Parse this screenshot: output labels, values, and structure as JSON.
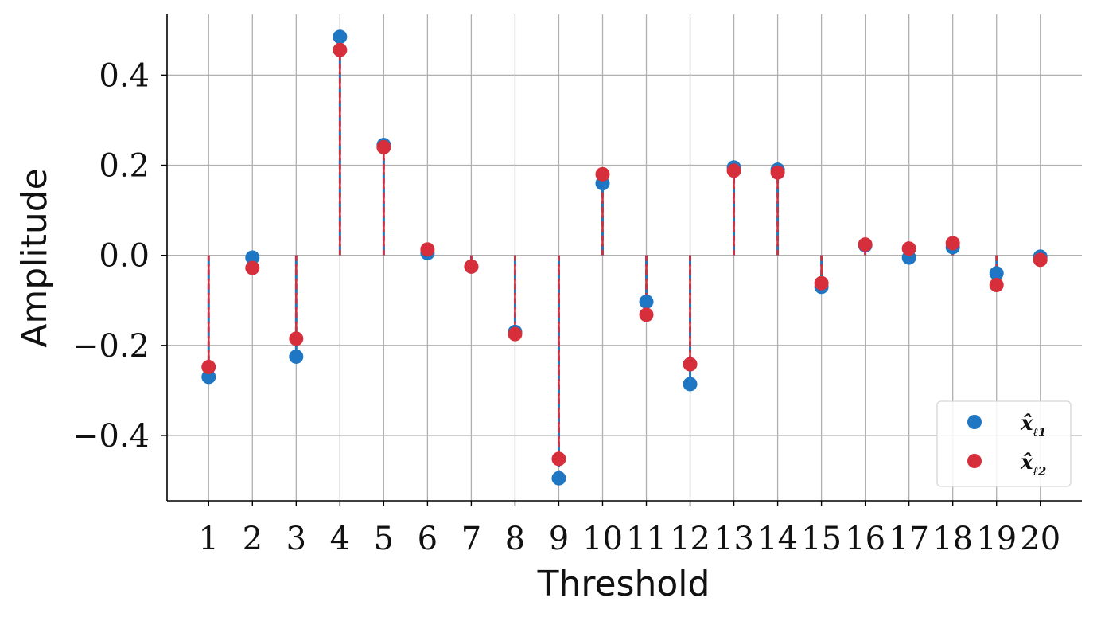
{
  "chart_data": {
    "type": "scatter",
    "subtype": "stem",
    "xlabel": "Threshold",
    "ylabel": "Amplitude",
    "x": [
      1,
      2,
      3,
      4,
      5,
      6,
      7,
      8,
      9,
      10,
      11,
      12,
      13,
      14,
      15,
      16,
      17,
      18,
      19,
      20
    ],
    "xticks": [
      "1",
      "2",
      "3",
      "4",
      "5",
      "6",
      "7",
      "8",
      "9",
      "10",
      "11",
      "12",
      "13",
      "14",
      "15",
      "16",
      "17",
      "18",
      "19",
      "20"
    ],
    "yticks": [
      {
        "value": -0.4,
        "label": "−0.4"
      },
      {
        "value": -0.2,
        "label": "−0.2"
      },
      {
        "value": 0.0,
        "label": "0.0"
      },
      {
        "value": 0.2,
        "label": "0.2"
      },
      {
        "value": 0.4,
        "label": "0.4"
      }
    ],
    "xlim": [
      0.05,
      20.95
    ],
    "ylim": [
      -0.545,
      0.535
    ],
    "grid": true,
    "legend_position": "bottom-right",
    "series": [
      {
        "name": "x̂",
        "name_subscript": "ℓ1",
        "color": "#1f77c4",
        "values": [
          -0.27,
          -0.005,
          -0.225,
          0.485,
          0.245,
          0.005,
          -0.025,
          -0.17,
          -0.495,
          0.16,
          -0.103,
          -0.286,
          0.195,
          0.19,
          -0.07,
          0.022,
          -0.005,
          0.018,
          -0.04,
          -0.003
        ]
      },
      {
        "name": "x̂",
        "name_subscript": "ℓ2",
        "color": "#d62f3b",
        "values": [
          -0.248,
          -0.028,
          -0.185,
          0.456,
          0.24,
          0.013,
          -0.025,
          -0.175,
          -0.452,
          0.18,
          -0.132,
          -0.242,
          0.188,
          0.184,
          -0.062,
          0.024,
          0.015,
          0.027,
          -0.066,
          -0.01
        ]
      }
    ]
  }
}
